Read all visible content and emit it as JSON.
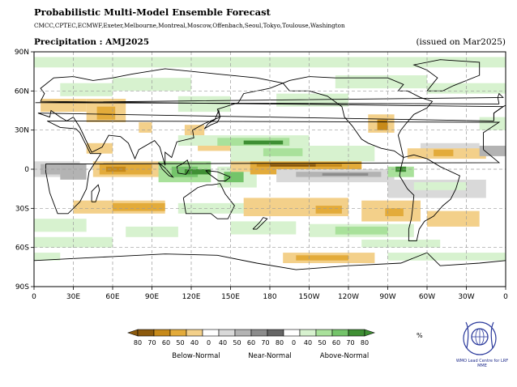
{
  "header": {
    "title": "Probabilistic Multi-Model Ensemble Forecast",
    "centres": "CMCC,CPTEC,ECMWF,Exeter,Melbourne,Montreal,Moscow,Offenbach,Seoul,Tokyo,Toulouse,Washington",
    "subtitle": "Precipitation : AMJ2025",
    "issued": "(issued on Mar2025)"
  },
  "map": {
    "lat_labels": [
      "90N",
      "60N",
      "30N",
      "0",
      "30S",
      "60S",
      "90S"
    ],
    "lon_labels": [
      "0",
      "30E",
      "60E",
      "90E",
      "120E",
      "150E",
      "180",
      "150W",
      "120W",
      "90W",
      "60W",
      "30W",
      "0"
    ],
    "grid": "dashed",
    "colors": {
      "below": [
        "#8c5a0d",
        "#c78a1a",
        "#e3ab3a",
        "#f3d08a"
      ],
      "near": [
        "#d9d9d9",
        "#b3b3b3",
        "#8c8c8c",
        "#666666"
      ],
      "above": [
        "#d7f2cf",
        "#a9e19b",
        "#74c46a",
        "#3f8f34"
      ],
      "white": "#ffffff"
    }
  },
  "legend": {
    "ticks": [
      "80",
      "70",
      "60",
      "50",
      "40",
      "0",
      "40",
      "50",
      "60",
      "70",
      "80",
      "0",
      "40",
      "50",
      "60",
      "70",
      "80"
    ],
    "unit": "%",
    "categories": [
      "Below-Normal",
      "Near-Normal",
      "Above-Normal"
    ]
  },
  "logo": {
    "text": "WMO Lead Centre for LRF MME"
  }
}
